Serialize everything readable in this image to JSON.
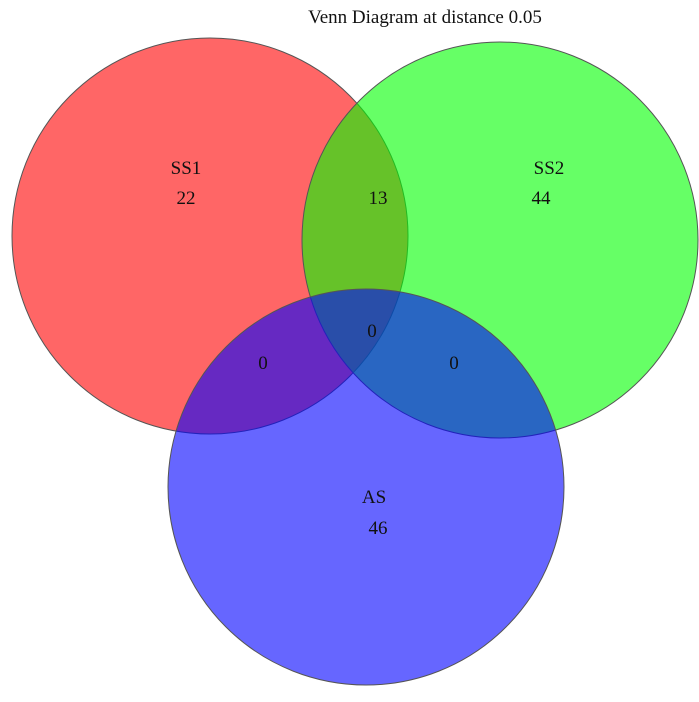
{
  "title": "Venn Diagram at distance 0.05",
  "sets": [
    {
      "key": "SS1",
      "label": "SS1",
      "only_count": "22",
      "color": "#ff0000"
    },
    {
      "key": "SS2",
      "label": "SS2",
      "only_count": "44",
      "color": "#00ff00"
    },
    {
      "key": "AS",
      "label": "AS",
      "only_count": "46",
      "color": "#0000ff"
    }
  ],
  "intersections": {
    "SS1_SS2": "13",
    "SS1_AS": "0",
    "SS2_AS": "0",
    "SS1_SS2_AS": "0"
  },
  "style": {
    "fill_opacity": 0.6
  }
}
